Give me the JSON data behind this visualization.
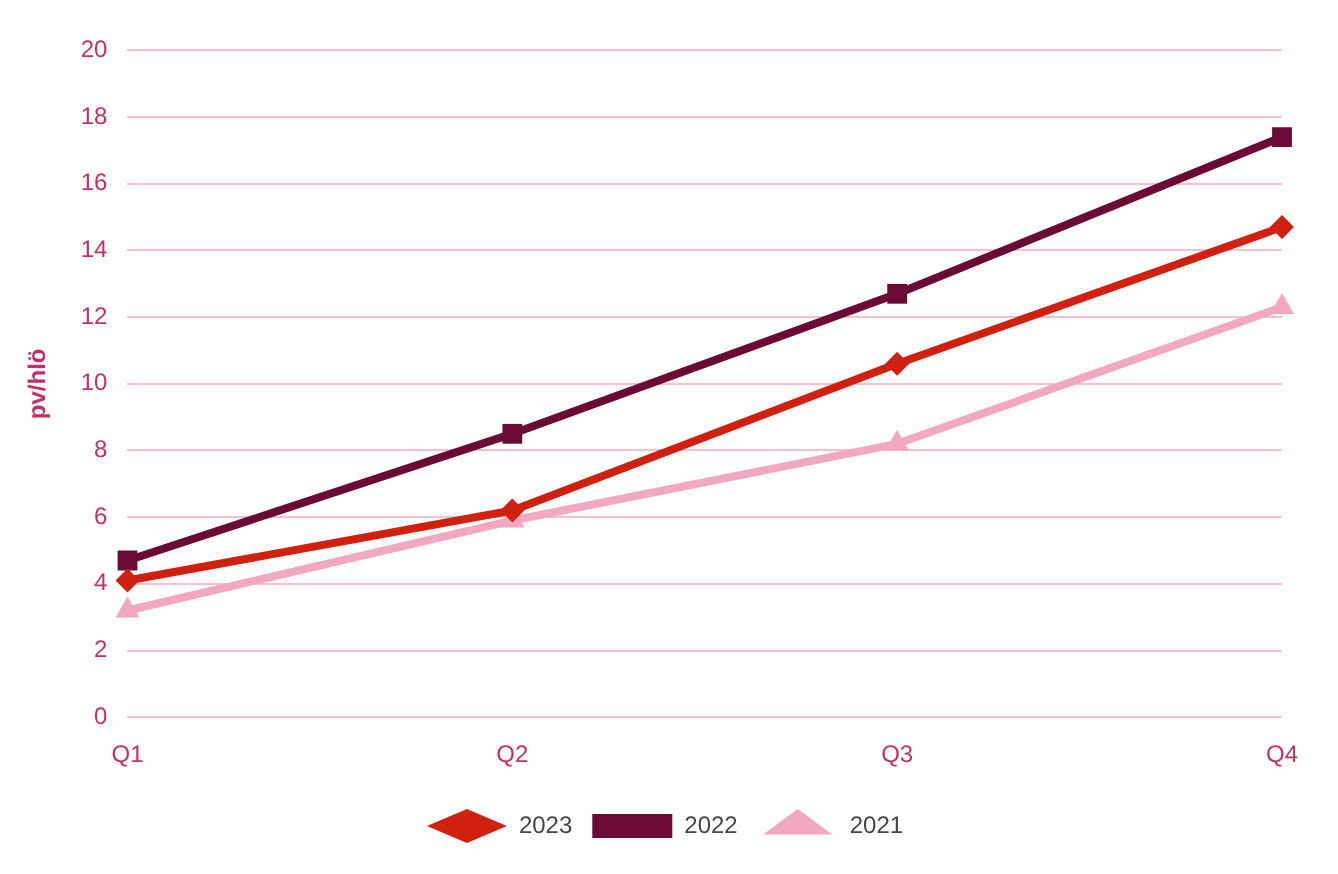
{
  "chart_data": {
    "type": "line",
    "ylabel": "pv/hlö",
    "categories": [
      "Q1",
      "Q2",
      "Q3",
      "Q4"
    ],
    "series": [
      {
        "name": "2023",
        "color": "#d0200f",
        "marker": "diamond",
        "values": [
          4.1,
          6.2,
          10.6,
          14.7
        ]
      },
      {
        "name": "2022",
        "color": "#6a0a35",
        "marker": "square",
        "values": [
          4.7,
          8.5,
          12.7,
          17.4
        ]
      },
      {
        "name": "2021",
        "color": "#f2a8c0",
        "marker": "triangle",
        "values": [
          3.2,
          5.9,
          8.2,
          12.3
        ]
      }
    ],
    "ylim": [
      0,
      20
    ],
    "yticks": [
      0,
      2,
      4,
      6,
      8,
      10,
      12,
      14,
      16,
      18,
      20
    ],
    "grid": "y",
    "legend": "bottom"
  }
}
